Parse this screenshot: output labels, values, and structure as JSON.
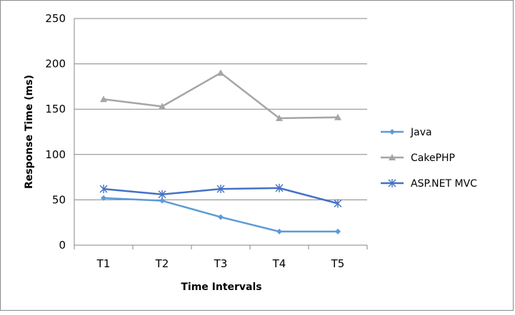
{
  "chart_data": {
    "type": "line",
    "title": "",
    "xlabel": "Time Intervals",
    "ylabel": "Response Time (ms)",
    "categories": [
      "T1",
      "T2",
      "T3",
      "T4",
      "T5"
    ],
    "ylim": [
      0,
      250
    ],
    "yticks": [
      0,
      50,
      100,
      150,
      200,
      250
    ],
    "grid": true,
    "legend_position": "right",
    "series": [
      {
        "name": "Java",
        "values": [
          52,
          49,
          31,
          15,
          15
        ],
        "color": "#5b9bd5",
        "marker": "diamond"
      },
      {
        "name": "CakePHP",
        "values": [
          161,
          153,
          190,
          140,
          141
        ],
        "color": "#a5a5a5",
        "marker": "triangle"
      },
      {
        "name": "ASP.NET MVC",
        "values": [
          62,
          56,
          62,
          63,
          46
        ],
        "color": "#4472c4",
        "marker": "x-star"
      }
    ]
  }
}
